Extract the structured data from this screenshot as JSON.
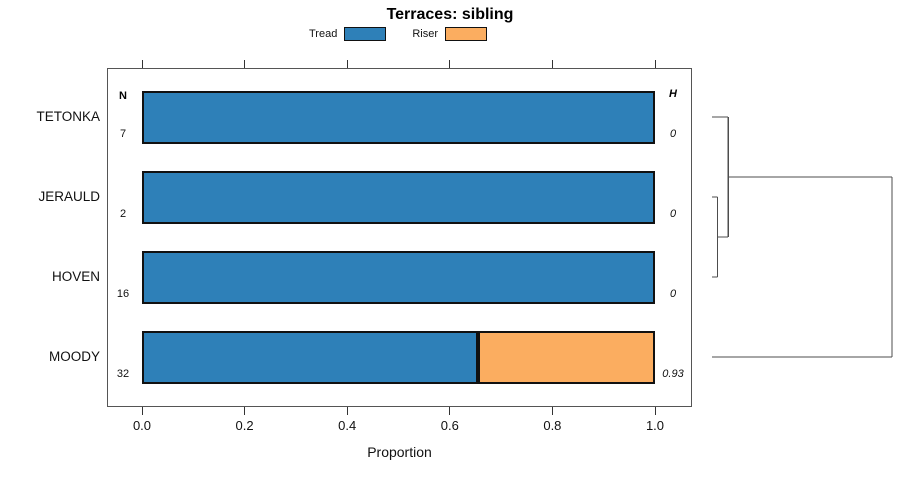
{
  "chart_data": {
    "type": "bar",
    "orientation": "horizontal",
    "stacked": true,
    "title": "Terraces: sibling",
    "xlabel": "Proportion",
    "xlim": [
      0,
      1
    ],
    "x_ticks": [
      "0.0",
      "0.2",
      "0.4",
      "0.6",
      "0.8",
      "1.0"
    ],
    "x_tick_values": [
      0,
      0.2,
      0.4,
      0.6,
      0.8,
      1.0
    ],
    "grid": false,
    "legend_position": "top-center",
    "n_column_header": "N",
    "h_column_header": "H",
    "legend": [
      {
        "name": "Tread",
        "color": "#2E80B8"
      },
      {
        "name": "Riser",
        "color": "#FBAD60"
      }
    ],
    "rows": [
      {
        "label": "TETONKA",
        "n": "7",
        "h": "0",
        "values": {
          "Tread": 1.0,
          "Riser": 0.0
        }
      },
      {
        "label": "JERAULD",
        "n": "2",
        "h": "0",
        "values": {
          "Tread": 1.0,
          "Riser": 0.0
        }
      },
      {
        "label": "HOVEN",
        "n": "16",
        "h": "0",
        "values": {
          "Tread": 1.0,
          "Riser": 0.0
        }
      },
      {
        "label": "MOODY",
        "n": "32",
        "h": "0.93",
        "values": {
          "Tread": 0.655,
          "Riser": 0.345
        }
      }
    ],
    "dendrogram": {
      "merges": [
        {
          "a": "JERAULD",
          "b": "HOVEN",
          "height": 0.03
        },
        {
          "a": "TETONKA",
          "b": "@0",
          "height": 0.09
        },
        {
          "a": "@1",
          "b": "MOODY",
          "height": 1.0
        }
      ]
    },
    "colors": {
      "bar_border": "#111111",
      "axis_box": "#555555",
      "tick": "#333333",
      "dendrogram_line": "#4d4d4d",
      "background": "#ffffff"
    }
  }
}
